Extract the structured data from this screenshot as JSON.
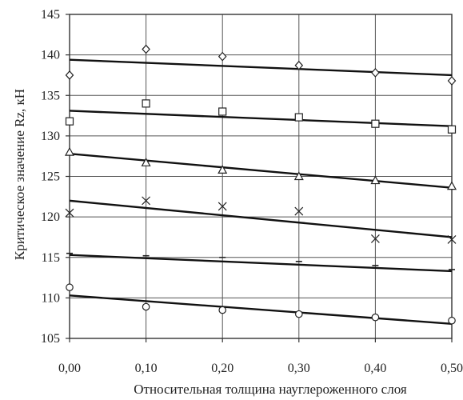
{
  "chart_data": {
    "type": "scatter",
    "xlabel": "Относительная толщина науглероженного слоя",
    "ylabel": "Критическое значение Rz, кН",
    "xlim": [
      0.0,
      0.5
    ],
    "ylim": [
      105,
      145
    ],
    "x_ticks": [
      "0,00",
      "0,10",
      "0,20",
      "0,30",
      "0,40",
      "0,50"
    ],
    "y_ticks": [
      "105",
      "110",
      "115",
      "120",
      "125",
      "130",
      "135",
      "140",
      "145"
    ],
    "grid": true,
    "series": [
      {
        "marker": "diamond",
        "points": [
          [
            0.0,
            137.5
          ],
          [
            0.1,
            140.7
          ],
          [
            0.2,
            139.8
          ],
          [
            0.3,
            138.7
          ],
          [
            0.4,
            137.8
          ],
          [
            0.5,
            136.8
          ]
        ],
        "trend": [
          [
            0.0,
            139.4
          ],
          [
            0.5,
            137.5
          ]
        ]
      },
      {
        "marker": "square",
        "points": [
          [
            0.0,
            131.8
          ],
          [
            0.1,
            134.0
          ],
          [
            0.2,
            133.0
          ],
          [
            0.3,
            132.3
          ],
          [
            0.4,
            131.5
          ],
          [
            0.5,
            130.8
          ]
        ],
        "trend": [
          [
            0.0,
            133.1
          ],
          [
            0.5,
            131.2
          ]
        ]
      },
      {
        "marker": "triangle",
        "points": [
          [
            0.0,
            128.0
          ],
          [
            0.1,
            126.7
          ],
          [
            0.2,
            125.8
          ],
          [
            0.3,
            125.0
          ],
          [
            0.4,
            124.5
          ],
          [
            0.5,
            123.8
          ]
        ],
        "trend": [
          [
            0.0,
            127.8
          ],
          [
            0.5,
            123.6
          ]
        ]
      },
      {
        "marker": "cross",
        "points": [
          [
            0.0,
            120.5
          ],
          [
            0.1,
            122.0
          ],
          [
            0.2,
            121.3
          ],
          [
            0.3,
            120.7
          ],
          [
            0.4,
            117.3
          ],
          [
            0.5,
            117.2
          ]
        ],
        "trend": [
          [
            0.0,
            122.0
          ],
          [
            0.5,
            117.5
          ]
        ]
      },
      {
        "marker": "dash",
        "points": [
          [
            0.0,
            115.5
          ],
          [
            0.1,
            115.2
          ],
          [
            0.2,
            115.0
          ],
          [
            0.3,
            114.5
          ],
          [
            0.4,
            114.0
          ],
          [
            0.5,
            113.5
          ]
        ],
        "trend": [
          [
            0.0,
            115.3
          ],
          [
            0.5,
            113.3
          ]
        ]
      },
      {
        "marker": "circle",
        "points": [
          [
            0.0,
            111.3
          ],
          [
            0.1,
            108.9
          ],
          [
            0.2,
            108.5
          ],
          [
            0.3,
            108.0
          ],
          [
            0.4,
            107.6
          ],
          [
            0.5,
            107.2
          ]
        ],
        "trend": [
          [
            0.0,
            110.3
          ],
          [
            0.5,
            106.8
          ]
        ]
      }
    ]
  }
}
